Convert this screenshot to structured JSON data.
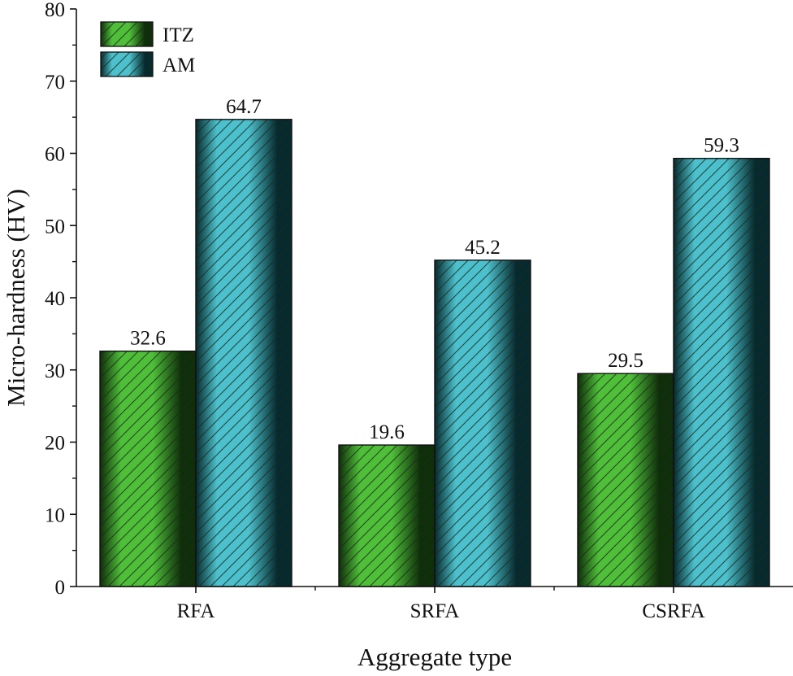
{
  "chart_data": {
    "type": "bar",
    "title": "",
    "xlabel": "Aggregate type",
    "ylabel": "Micro-hardness (HV)",
    "ylim": [
      0,
      80
    ],
    "yticks": [
      0,
      10,
      20,
      30,
      40,
      50,
      60,
      70,
      80
    ],
    "grid": false,
    "legend_position": "top-left",
    "categories": [
      "RFA",
      "SRFA",
      "CSRFA"
    ],
    "series": [
      {
        "name": "ITZ",
        "values": [
          32.6,
          19.6,
          29.5
        ],
        "value_labels": [
          "32.6",
          "19.6",
          "29.5"
        ],
        "color_light": "#4fbf3a",
        "color_dark": "#0f2e0a",
        "hatch": "diagonal"
      },
      {
        "name": "AM",
        "values": [
          64.7,
          45.2,
          59.3
        ],
        "value_labels": [
          "64.7",
          "45.2",
          "59.3"
        ],
        "color_light": "#4cc0cc",
        "color_dark": "#062a2e",
        "hatch": "diagonal"
      }
    ]
  }
}
